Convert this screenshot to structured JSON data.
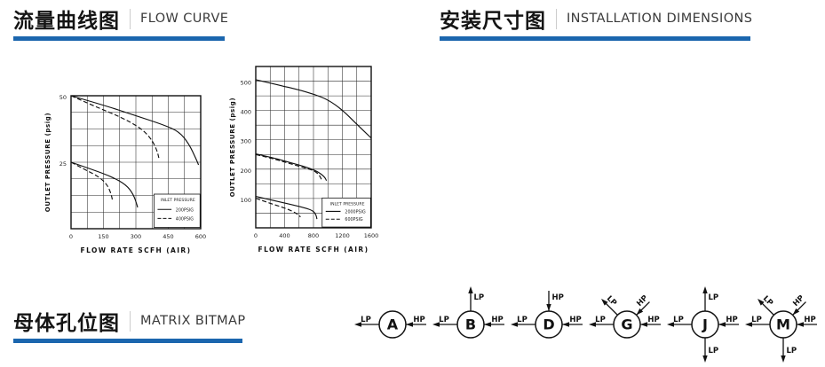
{
  "accent_color": "#1b66ae",
  "headers": {
    "flow_curve": {
      "zh": "流量曲线图",
      "en": "FLOW CURVE"
    },
    "installation": {
      "zh": "安装尺寸图",
      "en": "INSTALLATION DIMENSIONS"
    },
    "matrix": {
      "zh": "母体孔位图",
      "en": "MATRIX BITMAP"
    }
  },
  "chart_data": [
    {
      "type": "line",
      "title": "",
      "xlabel": "FLOW RATE SCFH (AIR)",
      "ylabel": "OUTLET PRESSURE (psig)",
      "xlim": [
        0,
        600
      ],
      "ylim": [
        0,
        50
      ],
      "xticks": [
        0,
        150,
        300,
        450,
        600
      ],
      "yticks": [
        25,
        50
      ],
      "x_grid_step": 75,
      "y_grid_step": 6.25,
      "grid": true,
      "legend": {
        "title": "INLET PRESSURE",
        "position": "bottom-right",
        "entries": [
          {
            "label": "200PSIG",
            "style": "solid"
          },
          {
            "label": "400PSIG",
            "style": "dashed"
          }
        ]
      },
      "series": [
        {
          "name": "200PSIG inlet - 50 psig setting",
          "style": "solid",
          "points": [
            [
              0,
              50
            ],
            [
              150,
              46.5
            ],
            [
              300,
              42.5
            ],
            [
              430,
              39
            ],
            [
              500,
              36.5
            ],
            [
              545,
              32
            ],
            [
              580,
              26
            ],
            [
              590,
              24
            ]
          ]
        },
        {
          "name": "400PSIG inlet - 50 psig setting",
          "style": "dashed",
          "points": [
            [
              0,
              50
            ],
            [
              110,
              46
            ],
            [
              230,
              42
            ],
            [
              320,
              38
            ],
            [
              370,
              34
            ],
            [
              398,
              29.5
            ],
            [
              408,
              26
            ]
          ]
        },
        {
          "name": "200PSIG inlet - 25 psig setting",
          "style": "solid",
          "points": [
            [
              0,
              25
            ],
            [
              90,
              22.5
            ],
            [
              190,
              19.5
            ],
            [
              255,
              16.5
            ],
            [
              288,
              13
            ],
            [
              305,
              9
            ],
            [
              308,
              8
            ]
          ]
        },
        {
          "name": "400PSIG inlet - 25 psig setting",
          "style": "dashed",
          "points": [
            [
              0,
              25
            ],
            [
              70,
              22
            ],
            [
              130,
              19.5
            ],
            [
              168,
              16.5
            ],
            [
              186,
              13
            ],
            [
              192,
              10.5
            ]
          ]
        }
      ]
    },
    {
      "type": "line",
      "title": "",
      "xlabel": "FLOW RATE SCFH (AIR)",
      "ylabel": "OUTLET PRESSURE (psig)",
      "xlim": [
        0,
        1600
      ],
      "ylim": [
        0,
        550
      ],
      "xticks": [
        0,
        400,
        800,
        1200,
        1600
      ],
      "yticks": [
        100,
        200,
        300,
        400,
        500
      ],
      "x_grid_step": 200,
      "y_grid_step": 50,
      "grid": true,
      "legend": {
        "title": "INLET PRESSURE",
        "position": "bottom-right",
        "entries": [
          {
            "label": "2000PSIG",
            "style": "solid"
          },
          {
            "label": "600PSIG",
            "style": "dashed"
          }
        ]
      },
      "series": [
        {
          "name": "500 psig setting",
          "style": "solid",
          "points": [
            [
              0,
              505
            ],
            [
              300,
              488
            ],
            [
              600,
              470
            ],
            [
              800,
              456
            ],
            [
              1000,
              437
            ],
            [
              1200,
              402
            ],
            [
              1400,
              353
            ],
            [
              1600,
              306
            ]
          ]
        },
        {
          "name": "250 psig setting solid",
          "style": "solid",
          "points": [
            [
              0,
              252
            ],
            [
              250,
              238
            ],
            [
              500,
              221
            ],
            [
              700,
              207
            ],
            [
              850,
              193
            ],
            [
              950,
              175
            ],
            [
              980,
              161
            ]
          ]
        },
        {
          "name": "250 psig setting dashed",
          "style": "dashed",
          "points": [
            [
              0,
              250
            ],
            [
              250,
              235
            ],
            [
              500,
              217
            ],
            [
              680,
              204
            ],
            [
              800,
              196
            ],
            [
              880,
              181
            ],
            [
              920,
              160
            ]
          ]
        },
        {
          "name": "100 psig setting solid",
          "style": "solid",
          "points": [
            [
              0,
              107
            ],
            [
              250,
              93
            ],
            [
              500,
              79
            ],
            [
              680,
              68
            ],
            [
              790,
              59
            ],
            [
              835,
              45
            ],
            [
              848,
              30
            ]
          ]
        },
        {
          "name": "100 psig setting dashed",
          "style": "dashed",
          "points": [
            [
              0,
              101
            ],
            [
              180,
              85
            ],
            [
              360,
              71
            ],
            [
              500,
              58
            ],
            [
              590,
              45
            ],
            [
              620,
              37
            ]
          ]
        }
      ]
    }
  ],
  "matrix_diagrams": [
    {
      "letter": "A",
      "ports": [
        {
          "dir": "left",
          "label": "LP",
          "flow": "out"
        },
        {
          "dir": "right",
          "label": "HP",
          "flow": "in"
        }
      ]
    },
    {
      "letter": "B",
      "ports": [
        {
          "dir": "left",
          "label": "LP",
          "flow": "out"
        },
        {
          "dir": "up",
          "label": "LP",
          "flow": "out"
        },
        {
          "dir": "right",
          "label": "HP",
          "flow": "in"
        }
      ]
    },
    {
      "letter": "D",
      "ports": [
        {
          "dir": "left",
          "label": "LP",
          "flow": "out"
        },
        {
          "dir": "up",
          "label": "HP",
          "flow": "in"
        },
        {
          "dir": "right",
          "label": "HP",
          "flow": "in"
        }
      ]
    },
    {
      "letter": "G",
      "ports": [
        {
          "dir": "left",
          "label": "LP",
          "flow": "out"
        },
        {
          "dir": "up-left",
          "label": "LP",
          "flow": "out"
        },
        {
          "dir": "up-right",
          "label": "HP",
          "flow": "in"
        },
        {
          "dir": "right",
          "label": "HP",
          "flow": "in"
        }
      ]
    },
    {
      "letter": "J",
      "ports": [
        {
          "dir": "left",
          "label": "LP",
          "flow": "out"
        },
        {
          "dir": "up",
          "label": "LP",
          "flow": "out"
        },
        {
          "dir": "down",
          "label": "LP",
          "flow": "out"
        },
        {
          "dir": "right",
          "label": "HP",
          "flow": "in"
        }
      ]
    },
    {
      "letter": "M",
      "ports": [
        {
          "dir": "left",
          "label": "LP",
          "flow": "out"
        },
        {
          "dir": "up-left",
          "label": "LP",
          "flow": "out"
        },
        {
          "dir": "up-right",
          "label": "HP",
          "flow": "in"
        },
        {
          "dir": "right",
          "label": "HP",
          "flow": "in"
        },
        {
          "dir": "down",
          "label": "LP",
          "flow": "out"
        }
      ]
    }
  ]
}
